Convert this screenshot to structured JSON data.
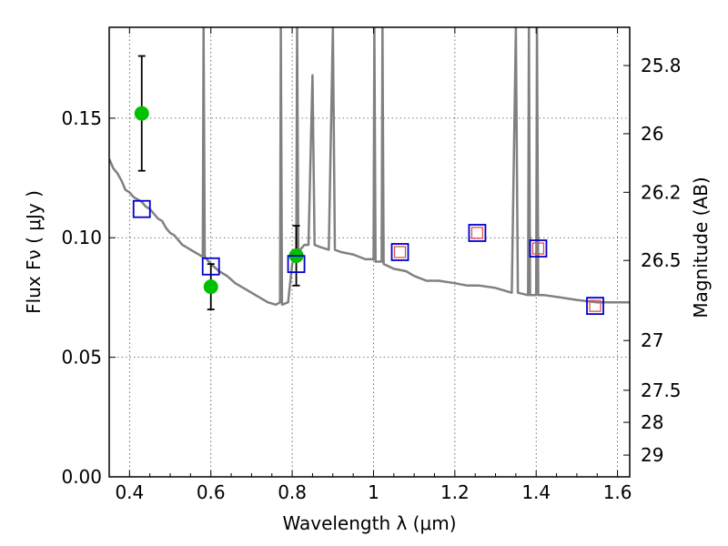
{
  "chart_data": {
    "type": "scatter",
    "xlabel": "Wavelength  λ (μm)",
    "ylabel": "Flux  F_ν  ( μJy )",
    "y2label": "Magnitude (AB)",
    "xlim": [
      0.35,
      1.63
    ],
    "ylim": [
      0.0,
      0.188
    ],
    "grid": true,
    "x_ticks": [
      0.4,
      0.6,
      0.8,
      1.0,
      1.2,
      1.4,
      1.6
    ],
    "x_tick_labels": [
      "0.4",
      "0.6",
      "0.8",
      "1",
      "1.2",
      "1.4",
      "1.6"
    ],
    "y_ticks": [
      0.0,
      0.05,
      0.1,
      0.15
    ],
    "y_tick_labels": [
      "0.00",
      "0.05",
      "0.10",
      "0.15"
    ],
    "y2_ticks": [
      {
        "label": "25.8",
        "flux": 0.172
      },
      {
        "label": "26",
        "flux": 0.1435
      },
      {
        "label": "26.2",
        "flux": 0.119
      },
      {
        "label": "26.5",
        "flux": 0.0905
      },
      {
        "label": "27",
        "flux": 0.057
      },
      {
        "label": "27.5",
        "flux": 0.0362
      },
      {
        "label": "28",
        "flux": 0.0228
      },
      {
        "label": "29",
        "flux": 0.0091
      }
    ],
    "series": [
      {
        "kind": "line",
        "color": "#808080",
        "points": [
          [
            0.35,
            0.133
          ],
          [
            0.36,
            0.129
          ],
          [
            0.37,
            0.127
          ],
          [
            0.38,
            0.124
          ],
          [
            0.39,
            0.12
          ],
          [
            0.4,
            0.119
          ],
          [
            0.41,
            0.117
          ],
          [
            0.42,
            0.116
          ],
          [
            0.43,
            0.115
          ],
          [
            0.44,
            0.113
          ],
          [
            0.45,
            0.112
          ],
          [
            0.46,
            0.11
          ],
          [
            0.47,
            0.108
          ],
          [
            0.48,
            0.107
          ],
          [
            0.49,
            0.104
          ],
          [
            0.5,
            0.102
          ],
          [
            0.51,
            0.101
          ],
          [
            0.52,
            0.099
          ],
          [
            0.53,
            0.097
          ],
          [
            0.54,
            0.096
          ],
          [
            0.55,
            0.095
          ],
          [
            0.56,
            0.094
          ],
          [
            0.57,
            0.093
          ],
          [
            0.58,
            0.092
          ],
          [
            0.582,
            0.188
          ],
          [
            0.585,
            0.092
          ],
          [
            0.6,
            0.089
          ],
          [
            0.62,
            0.086
          ],
          [
            0.64,
            0.084
          ],
          [
            0.66,
            0.081
          ],
          [
            0.68,
            0.079
          ],
          [
            0.7,
            0.077
          ],
          [
            0.72,
            0.075
          ],
          [
            0.74,
            0.073
          ],
          [
            0.76,
            0.072
          ],
          [
            0.77,
            0.073
          ],
          [
            0.772,
            0.188
          ],
          [
            0.775,
            0.072
          ],
          [
            0.79,
            0.073
          ],
          [
            0.8,
            0.089
          ],
          [
            0.81,
            0.094
          ],
          [
            0.812,
            0.188
          ],
          [
            0.815,
            0.094
          ],
          [
            0.83,
            0.097
          ],
          [
            0.84,
            0.097
          ],
          [
            0.85,
            0.168
          ],
          [
            0.855,
            0.097
          ],
          [
            0.87,
            0.096
          ],
          [
            0.89,
            0.095
          ],
          [
            0.9,
            0.188
          ],
          [
            0.905,
            0.095
          ],
          [
            0.92,
            0.094
          ],
          [
            0.95,
            0.093
          ],
          [
            0.98,
            0.091
          ],
          [
            1.0,
            0.091
          ],
          [
            1.002,
            0.188
          ],
          [
            1.005,
            0.09
          ],
          [
            1.02,
            0.09
          ],
          [
            1.022,
            0.188
          ],
          [
            1.025,
            0.089
          ],
          [
            1.05,
            0.087
          ],
          [
            1.08,
            0.086
          ],
          [
            1.1,
            0.084
          ],
          [
            1.13,
            0.082
          ],
          [
            1.16,
            0.082
          ],
          [
            1.2,
            0.081
          ],
          [
            1.23,
            0.08
          ],
          [
            1.26,
            0.08
          ],
          [
            1.3,
            0.079
          ],
          [
            1.34,
            0.077
          ],
          [
            1.35,
            0.188
          ],
          [
            1.355,
            0.077
          ],
          [
            1.38,
            0.076
          ],
          [
            1.382,
            0.188
          ],
          [
            1.385,
            0.076
          ],
          [
            1.4,
            0.076
          ],
          [
            1.402,
            0.188
          ],
          [
            1.405,
            0.076
          ],
          [
            1.42,
            0.076
          ],
          [
            1.46,
            0.075
          ],
          [
            1.5,
            0.074
          ],
          [
            1.55,
            0.073
          ],
          [
            1.6,
            0.073
          ],
          [
            1.63,
            0.073
          ]
        ]
      },
      {
        "kind": "errorbar",
        "color": "#00c000",
        "points": [
          {
            "x": 0.43,
            "y": 0.152,
            "err": 0.024
          },
          {
            "x": 0.6,
            "y": 0.0795,
            "err": 0.0095
          },
          {
            "x": 0.81,
            "y": 0.0925,
            "err": 0.0125
          }
        ]
      },
      {
        "kind": "square",
        "color": "#0000cc",
        "points": [
          [
            0.43,
            0.112
          ],
          [
            0.6,
            0.088
          ],
          [
            0.81,
            0.089
          ],
          [
            1.065,
            0.094
          ],
          [
            1.255,
            0.102
          ],
          [
            1.405,
            0.0955
          ],
          [
            1.545,
            0.0715
          ]
        ]
      },
      {
        "kind": "small-square",
        "color": "#e05050",
        "points": [
          [
            1.065,
            0.094
          ],
          [
            1.255,
            0.102
          ],
          [
            1.405,
            0.0955
          ],
          [
            1.545,
            0.0715
          ]
        ]
      }
    ]
  }
}
